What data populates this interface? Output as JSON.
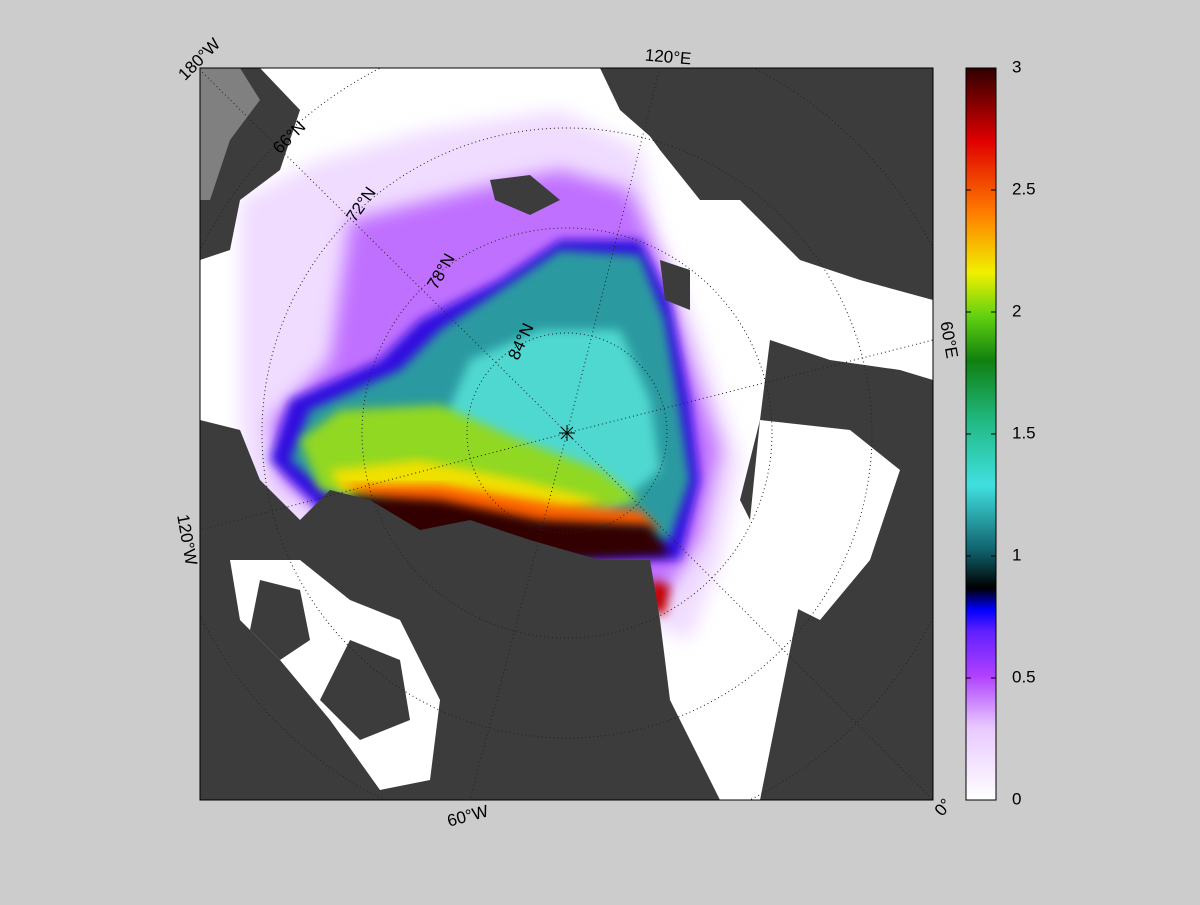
{
  "map": {
    "longitude_labels": [
      "180°W",
      "120°E",
      "60°E",
      "0°",
      "60°W",
      "120°W"
    ],
    "latitude_labels": [
      "66°N",
      "72°N",
      "78°N",
      "84°N"
    ]
  },
  "colorbar": {
    "lim": [
      0,
      3
    ],
    "ticks": [
      0,
      0.5,
      1,
      1.5,
      2,
      2.5,
      3
    ]
  }
}
